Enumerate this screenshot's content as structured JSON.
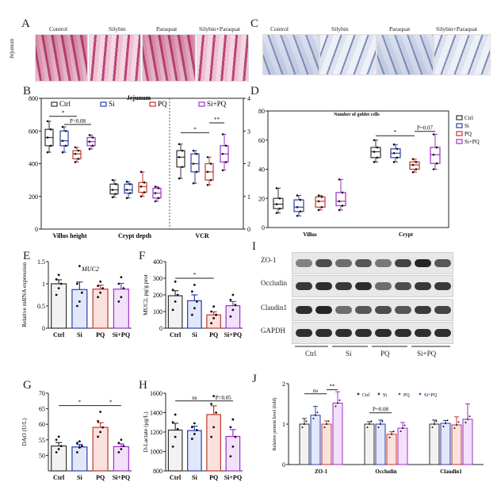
{
  "panels": {
    "A": "A",
    "B": "B",
    "C": "C",
    "D": "D",
    "E": "E",
    "F": "F",
    "G": "G",
    "H": "H",
    "I": "I",
    "J": "J"
  },
  "panelA": {
    "side_label": "Jejunum",
    "captions": [
      "Control",
      "Silybin",
      "Paraquat",
      "Silybin+Paraquat"
    ]
  },
  "panelC": {
    "captions": [
      "Control",
      "Silybin",
      "Paraquat",
      "Silybin+Paraquat"
    ]
  },
  "panelI": {
    "proteins": [
      "ZO-1",
      "Occludin",
      "Claudin1",
      "GAPDH"
    ],
    "groups": [
      "Ctrl",
      "Si",
      "PQ",
      "Si+PQ"
    ]
  },
  "colors": {
    "Ctrl": "#333333",
    "Si": "#2b3fa6",
    "PQ": "#c0392b",
    "SiPQ": "#9b30c9",
    "bar_ctrl": "#f2f2f2",
    "bar_si": "#e3e7fb",
    "bar_pq": "#fbe1de",
    "bar_sipq": "#f3e0fa"
  },
  "chart_data": [
    {
      "id": "B",
      "type": "box",
      "title": "Jejunum",
      "groups": [
        "Ctrl",
        "Si",
        "PQ",
        "Si+PQ"
      ],
      "categories": [
        "Villus height",
        "Crypt depth",
        "VCR"
      ],
      "ylim_left": [
        0,
        800
      ],
      "yticks_left": [
        0,
        200,
        400,
        600,
        800
      ],
      "ylim_right": [
        0,
        4
      ],
      "yticks_right": [
        0,
        1,
        2,
        3,
        4
      ],
      "series": [
        {
          "name": "Ctrl",
          "boxes": [
            [
              470,
              510,
              560,
              610,
              660
            ],
            [
              195,
              215,
              240,
              275,
              300
            ],
            [
              1.55,
              1.9,
              2.2,
              2.4,
              2.6
            ]
          ]
        },
        {
          "name": "Si",
          "boxes": [
            [
              470,
              510,
              540,
              600,
              625
            ],
            [
              190,
              220,
              240,
              275,
              290
            ],
            [
              1.4,
              1.75,
              2.0,
              2.3,
              2.4
            ]
          ]
        },
        {
          "name": "PQ",
          "boxes": [
            [
              410,
              430,
              460,
              480,
              500
            ],
            [
              200,
              225,
              260,
              285,
              350
            ],
            [
              1.35,
              1.5,
              1.75,
              2.0,
              2.2
            ]
          ]
        },
        {
          "name": "Si+PQ",
          "boxes": [
            [
              490,
              510,
              535,
              560,
              575
            ],
            [
              170,
              190,
              220,
              250,
              260
            ],
            [
              1.8,
              2.05,
              2.3,
              2.55,
              2.9
            ]
          ]
        }
      ],
      "annotations": [
        "*",
        "P=0.08",
        "*",
        "**"
      ]
    },
    {
      "id": "D",
      "type": "box",
      "title": "Number of goblet cells",
      "groups": [
        "Ctrl",
        "Si",
        "PQ",
        "Si+PQ"
      ],
      "categories": [
        "Villus",
        "Crypt"
      ],
      "ylim": [
        0,
        80
      ],
      "yticks": [
        0,
        20,
        40,
        60,
        80
      ],
      "series": [
        {
          "name": "Ctrl",
          "boxes": [
            [
              10,
              13,
              16,
              20,
              27
            ],
            [
              45,
              48,
              52,
              55,
              60
            ]
          ]
        },
        {
          "name": "Si",
          "boxes": [
            [
              8,
              11,
              14,
              19,
              22
            ],
            [
              45,
              48,
              51,
              54,
              57
            ]
          ]
        },
        {
          "name": "PQ",
          "boxes": [
            [
              12,
              14,
              18,
              21,
              22
            ],
            [
              38,
              40,
              43,
              45,
              47
            ]
          ]
        },
        {
          "name": "Si+PQ",
          "boxes": [
            [
              12,
              15,
              18,
              24,
              33
            ],
            [
              40,
              44,
              50,
              55,
              64
            ]
          ]
        }
      ],
      "annotations": [
        "*",
        "P=0.07"
      ]
    },
    {
      "id": "E",
      "type": "bar",
      "ylabel": "Relative mRNA expression",
      "subtitle": "MUC2",
      "categories": [
        "Ctrl",
        "Si",
        "PQ",
        "Si+PQ"
      ],
      "values": [
        1.0,
        0.87,
        0.88,
        0.88
      ],
      "errors": [
        0.09,
        0.17,
        0.09,
        0.13
      ],
      "ylim": [
        0,
        1.5
      ],
      "yticks": [
        0.0,
        0.5,
        1.0,
        1.5
      ],
      "points": [
        [
          0.75,
          0.9,
          1.0,
          1.1,
          1.2
        ],
        [
          0.5,
          0.6,
          0.8,
          1.0,
          1.4
        ],
        [
          0.7,
          0.8,
          0.9,
          0.95,
          1.05
        ],
        [
          0.6,
          0.7,
          0.9,
          1.0,
          1.15
        ]
      ]
    },
    {
      "id": "F",
      "type": "bar",
      "ylabel": "MUC2, pg/g prot",
      "categories": [
        "Ctrl",
        "Si",
        "PQ",
        "Si+PQ"
      ],
      "values": [
        195,
        165,
        80,
        135
      ],
      "errors": [
        30,
        35,
        18,
        25
      ],
      "ylim": [
        0,
        400
      ],
      "yticks": [
        0,
        100,
        200,
        300,
        400
      ],
      "points": [
        [
          110,
          160,
          200,
          230,
          280
        ],
        [
          80,
          120,
          160,
          220,
          260
        ],
        [
          30,
          60,
          80,
          100,
          130
        ],
        [
          70,
          110,
          140,
          170,
          200
        ]
      ],
      "annotations": [
        "*"
      ]
    },
    {
      "id": "G",
      "type": "bar",
      "ylabel": "DAO (U/L)",
      "categories": [
        "Ctrl",
        "Si",
        "PQ",
        "Si+PQ"
      ],
      "values": [
        53,
        52.7,
        59,
        52.8
      ],
      "errors": [
        1.1,
        0.8,
        1.5,
        0.9
      ],
      "ylim": [
        45,
        70
      ],
      "yticks": [
        50,
        55,
        60,
        65,
        70
      ],
      "points": [
        [
          51,
          52,
          53,
          55,
          56
        ],
        [
          51,
          52.5,
          53,
          54,
          54.5
        ],
        [
          56,
          57.5,
          59,
          61,
          64
        ],
        [
          51,
          52,
          53,
          54,
          55
        ]
      ],
      "annotations": [
        "*",
        "*"
      ]
    },
    {
      "id": "H",
      "type": "bar",
      "ylabel": "D-Lactate (μg/L)",
      "categories": [
        "Ctrl",
        "Si",
        "PQ",
        "Si+PQ"
      ],
      "values": [
        1220,
        1215,
        1380,
        1155
      ],
      "errors": [
        70,
        45,
        90,
        70
      ],
      "ylim": [
        800,
        1600
      ],
      "yticks": [
        800,
        1000,
        1200,
        1400,
        1600
      ],
      "points": [
        [
          1050,
          1150,
          1230,
          1300,
          1380
        ],
        [
          1130,
          1180,
          1220,
          1250,
          1290
        ],
        [
          1150,
          1250,
          1400,
          1490,
          1570
        ],
        [
          950,
          1050,
          1150,
          1250,
          1330
        ]
      ],
      "annotations": [
        "ns",
        "P=0.05"
      ]
    },
    {
      "id": "J",
      "type": "bar",
      "ylabel": "Relative protein level (fold)",
      "categories": [
        "ZO-1",
        "Occludin",
        "Claudin1"
      ],
      "groups": [
        "Ctrl",
        "Si",
        "PQ",
        "Si+PQ"
      ],
      "ylim": [
        0,
        2
      ],
      "yticks": [
        0,
        1,
        2
      ],
      "series": [
        {
          "name": "Ctrl",
          "values": [
            1.0,
            1.0,
            1.0
          ],
          "errors": [
            0.14,
            0.06,
            0.1
          ]
        },
        {
          "name": "Si",
          "values": [
            1.22,
            1.0,
            1.02
          ],
          "errors": [
            0.22,
            0.1,
            0.07
          ]
        },
        {
          "name": "PQ",
          "values": [
            1.0,
            0.75,
            0.98
          ],
          "errors": [
            0.08,
            0.06,
            0.2
          ]
        },
        {
          "name": "Si+PQ",
          "values": [
            1.52,
            0.9,
            1.12
          ],
          "errors": [
            0.28,
            0.14,
            0.38
          ]
        }
      ],
      "annotations": [
        "ns",
        "**",
        "P=0.08"
      ]
    }
  ]
}
